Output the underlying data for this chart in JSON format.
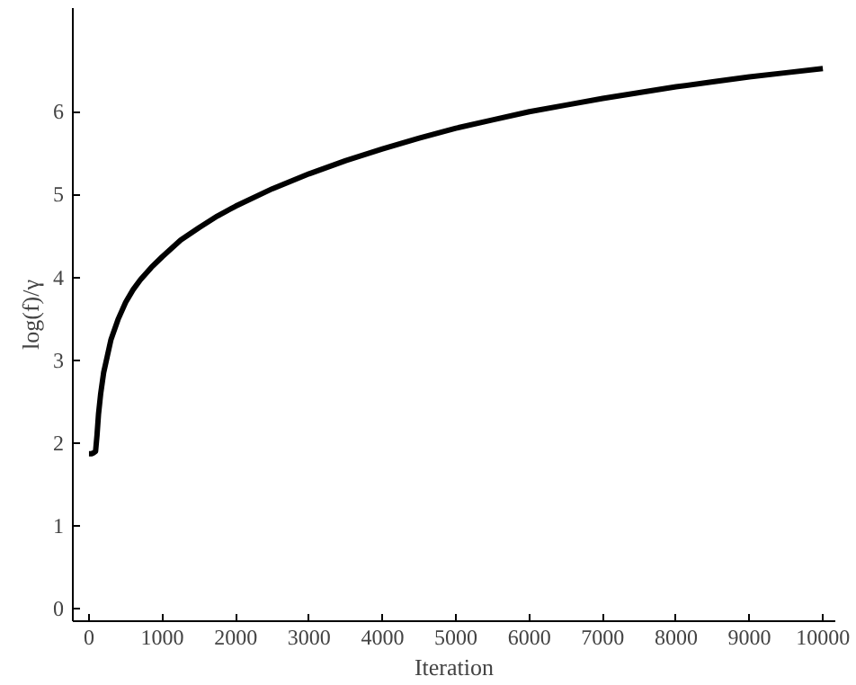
{
  "chart_data": {
    "type": "line",
    "xlabel": "Iteration",
    "ylabel": "log(f)/γ",
    "x": [
      0,
      30,
      60,
      90,
      110,
      130,
      160,
      200,
      250,
      300,
      400,
      500,
      600,
      700,
      850,
      1000,
      1250,
      1500,
      1750,
      2000,
      2500,
      3000,
      3500,
      4000,
      4500,
      5000,
      5500,
      6000,
      6500,
      7000,
      7500,
      8000,
      8500,
      9000,
      9500,
      10000
    ],
    "series": [
      {
        "color": "#000000",
        "values": [
          1.87,
          1.87,
          1.88,
          1.9,
          2.1,
          2.35,
          2.6,
          2.85,
          3.05,
          3.25,
          3.5,
          3.7,
          3.85,
          3.97,
          4.12,
          4.25,
          4.45,
          4.6,
          4.74,
          4.86,
          5.07,
          5.25,
          5.41,
          5.55,
          5.68,
          5.8,
          5.9,
          6.0,
          6.08,
          6.16,
          6.23,
          6.3,
          6.36,
          6.42,
          6.47,
          6.52
        ]
      }
    ],
    "xlim": [
      -220,
      10170
    ],
    "ylim": [
      -0.15,
      7.25
    ],
    "xticks": [
      0,
      1000,
      2000,
      3000,
      4000,
      5000,
      6000,
      7000,
      8000,
      9000,
      10000
    ],
    "yticks": [
      0,
      1,
      2,
      3,
      4,
      5,
      6
    ],
    "grid": false,
    "line_style": "solid",
    "marker": "none"
  }
}
